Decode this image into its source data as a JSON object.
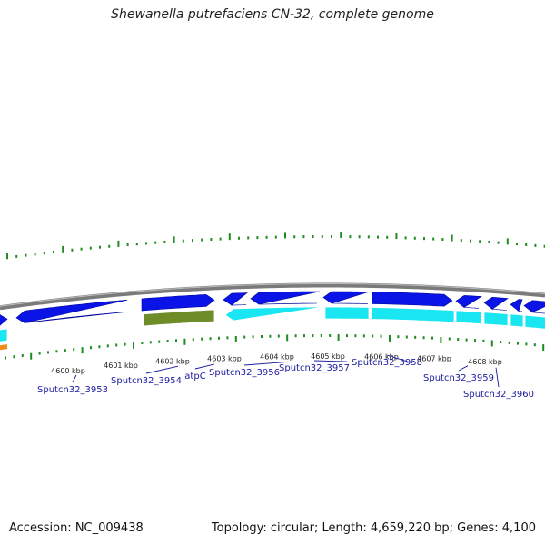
{
  "title": "Shewanella putrefaciens CN-32, complete genome",
  "footer": {
    "accession": "Accession: NC_009438",
    "summary": "Topology: circular; Length: 4,659,220 bp; Genes: 4,100"
  },
  "colors": {
    "backbone": "#7a7a7a",
    "forward_gene": "#0a14e6",
    "reverse_gene": "#19e6f0",
    "rna_gene": "#6e8c28",
    "other_feature": "#f08c14",
    "tick": "#1e8c1e",
    "label": "#1a1aa0"
  },
  "kbp_labels": [
    "4600 kbp",
    "4601 kbp",
    "4602 kbp",
    "4603 kbp",
    "4604 kbp",
    "4605 kbp",
    "4606 kbp",
    "4607 kbp",
    "4608 kbp"
  ],
  "gene_labels": [
    "Sputcn32_3953",
    "Sputcn32_3954",
    "atpC",
    "Sputcn32_3956",
    "Sputcn32_3957",
    "Sputcn32_3958",
    "Sputcn32_3959",
    "Sputcn32_3960"
  ]
}
